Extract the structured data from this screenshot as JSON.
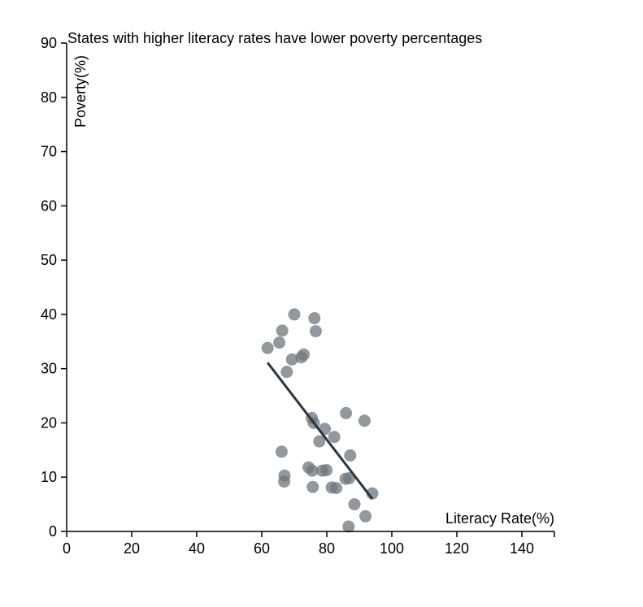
{
  "chart_data": {
    "type": "scatter",
    "title": "States with higher literacy rates have lower poverty percentages",
    "xlabel": "Literacy Rate(%)",
    "ylabel": "Poverty(%)",
    "xlim": [
      0,
      150
    ],
    "ylim": [
      0,
      90
    ],
    "xticks": [
      0,
      20,
      40,
      60,
      80,
      100,
      120,
      140
    ],
    "yticks": [
      0,
      10,
      20,
      30,
      40,
      50,
      60,
      70,
      80,
      90
    ],
    "grid": false,
    "colors": {
      "points": "#6f757c",
      "trend_line": "#2b3644",
      "axis": "#000000"
    },
    "points": [
      {
        "x": 70.0,
        "y": 40.0
      },
      {
        "x": 76.2,
        "y": 39.3
      },
      {
        "x": 66.3,
        "y": 37.0
      },
      {
        "x": 76.6,
        "y": 36.9
      },
      {
        "x": 65.4,
        "y": 34.8
      },
      {
        "x": 61.8,
        "y": 33.8
      },
      {
        "x": 72.9,
        "y": 32.6
      },
      {
        "x": 72.2,
        "y": 32.1
      },
      {
        "x": 69.3,
        "y": 31.7
      },
      {
        "x": 67.7,
        "y": 29.4
      },
      {
        "x": 85.9,
        "y": 21.8
      },
      {
        "x": 75.4,
        "y": 20.9
      },
      {
        "x": 91.6,
        "y": 20.4
      },
      {
        "x": 76.0,
        "y": 20.0
      },
      {
        "x": 79.4,
        "y": 18.9
      },
      {
        "x": 82.3,
        "y": 17.4
      },
      {
        "x": 77.7,
        "y": 16.6
      },
      {
        "x": 66.1,
        "y": 14.7
      },
      {
        "x": 87.2,
        "y": 14.0
      },
      {
        "x": 74.4,
        "y": 11.8
      },
      {
        "x": 75.5,
        "y": 11.2
      },
      {
        "x": 79.9,
        "y": 11.3
      },
      {
        "x": 78.6,
        "y": 11.2
      },
      {
        "x": 67.0,
        "y": 10.3
      },
      {
        "x": 85.8,
        "y": 9.7
      },
      {
        "x": 86.9,
        "y": 9.8
      },
      {
        "x": 66.9,
        "y": 9.2
      },
      {
        "x": 75.7,
        "y": 8.2
      },
      {
        "x": 81.5,
        "y": 8.1
      },
      {
        "x": 82.9,
        "y": 8.0
      },
      {
        "x": 94.0,
        "y": 7.0
      },
      {
        "x": 88.5,
        "y": 5.0
      },
      {
        "x": 91.9,
        "y": 2.8
      },
      {
        "x": 86.7,
        "y": 0.9
      }
    ],
    "trend_line": {
      "x": [
        61.8,
        94.0
      ],
      "y": [
        31.1,
        6.0
      ]
    }
  }
}
